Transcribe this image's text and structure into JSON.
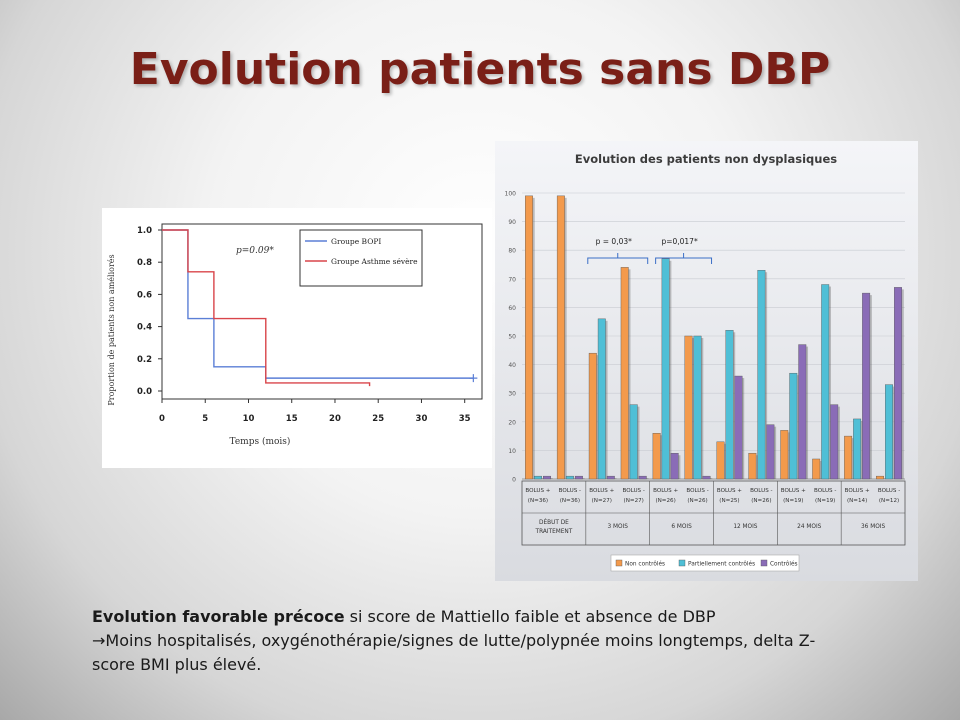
{
  "slide": {
    "title": "Evolution patients sans DBP",
    "text_bold": "Evolution favorable précoce",
    "text_line1_rest": " si score de Mattiello faible et absence de DBP",
    "arrow": "→",
    "text_line2": "Moins hospitalisés, oxygénothérapie/signes de lutte/polypnée moins longtemps, delta Z-score BMI plus élevé."
  },
  "chart_data": [
    {
      "type": "line",
      "subtype": "step",
      "title": "",
      "xlabel": "Temps (mois)",
      "ylabel": "Proportion de patients non améliorés",
      "xlim": [
        0,
        37
      ],
      "ylim": [
        0,
        1.0
      ],
      "xticks": [
        "0",
        "5",
        "10",
        "15",
        "20",
        "25",
        "30",
        "35"
      ],
      "yticks": [
        "0.0",
        "0.2",
        "0.4",
        "0.6",
        "0.8",
        "1.0"
      ],
      "annotation": "p=0.09*",
      "legend_position": "top-right",
      "series": [
        {
          "name": "Groupe BOPI",
          "color": "#5b7fd6",
          "x": [
            0,
            3,
            6,
            12,
            36
          ],
          "y": [
            1.0,
            0.45,
            0.15,
            0.08,
            0.08
          ]
        },
        {
          "name": "Groupe Asthme sévère",
          "color": "#d9454a",
          "x": [
            0,
            3,
            6,
            12,
            24
          ],
          "y": [
            1.0,
            0.74,
            0.45,
            0.05,
            0.03
          ]
        }
      ]
    },
    {
      "type": "bar",
      "title": "Evolution des patients non dysplasiques",
      "ylim": [
        0,
        100
      ],
      "yticks": [
        "0",
        "10",
        "20",
        "30",
        "40",
        "50",
        "60",
        "70",
        "80",
        "90",
        "100"
      ],
      "categories": [
        "BOLUS + (N=36)",
        "BOLUS - (N=36)",
        "BOLUS + (N=27)",
        "BOLUS - (N=27)",
        "BOLUS + (N=26)",
        "BOLUS - (N=26)",
        "BOLUS + (N=25)",
        "BOLUS - (N=26)",
        "BOLUS + (N=19)",
        "BOLUS - (N=19)",
        "BOLUS + (N=14)",
        "BOLUS - (N=12)"
      ],
      "category_lines": [
        [
          "BOLUS +",
          "(N=36)"
        ],
        [
          "BOLUS -",
          "(N=36)"
        ],
        [
          "BOLUS +",
          "(N=27)"
        ],
        [
          "BOLUS -",
          "(N=27)"
        ],
        [
          "BOLUS +",
          "(N=26)"
        ],
        [
          "BOLUS -",
          "(N=26)"
        ],
        [
          "BOLUS +",
          "(N=25)"
        ],
        [
          "BOLUS -",
          "(N=26)"
        ],
        [
          "BOLUS +",
          "(N=19)"
        ],
        [
          "BOLUS -",
          "(N=19)"
        ],
        [
          "BOLUS +",
          "(N=14)"
        ],
        [
          "BOLUS -",
          "(N=12)"
        ]
      ],
      "groups": [
        {
          "label": [
            "DÉBUT DE",
            "TRAITEMENT"
          ]
        },
        {
          "label": [
            "3 MOIS"
          ]
        },
        {
          "label": [
            "6 MOIS"
          ]
        },
        {
          "label": [
            "12 MOIS"
          ]
        },
        {
          "label": [
            "24 MOIS"
          ]
        },
        {
          "label": [
            "36 MOIS"
          ]
        }
      ],
      "annotations": [
        "p = 0,03*",
        "p=0,017*"
      ],
      "legend_position": "bottom",
      "series": [
        {
          "name": "Non contrôlés",
          "color": "#f39a4c",
          "values": [
            99,
            99,
            44,
            74,
            16,
            50,
            13,
            9,
            17,
            7,
            15,
            1
          ]
        },
        {
          "name": "Partiellement contrôlés",
          "color": "#4fbfd6",
          "values": [
            1,
            1,
            56,
            26,
            77,
            50,
            52,
            73,
            37,
            68,
            21,
            33
          ]
        },
        {
          "name": "Contrôlés",
          "color": "#8a6cb7",
          "values": [
            1,
            1,
            1,
            1,
            9,
            1,
            36,
            19,
            47,
            26,
            65,
            67
          ]
        }
      ]
    }
  ]
}
